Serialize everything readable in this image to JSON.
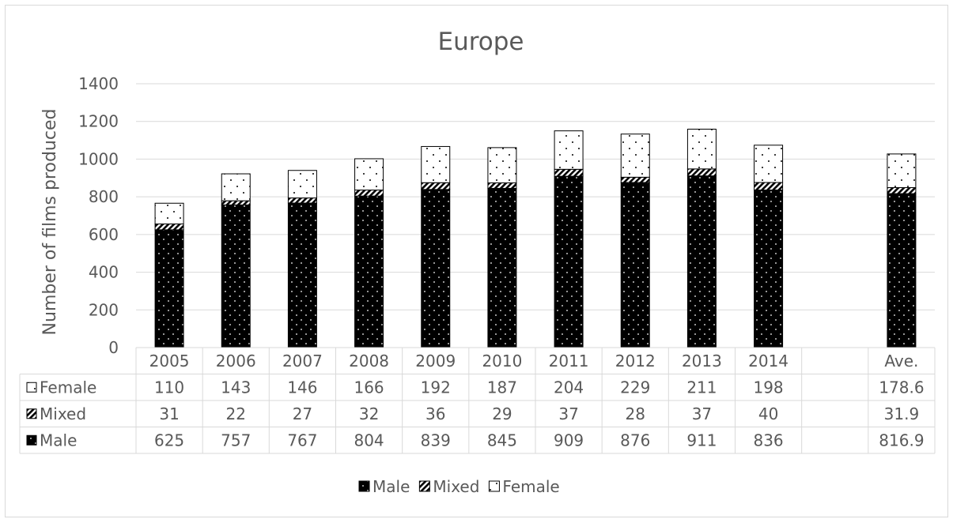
{
  "chart_data": {
    "type": "bar",
    "stacked": true,
    "title": "Europe",
    "ylabel": "Number of films produced",
    "xlabel": "",
    "ylim": [
      0,
      1400
    ],
    "yticks": [
      "0",
      "200",
      "400",
      "600",
      "800",
      "1000",
      "1200",
      "1400"
    ],
    "yticks_values": [
      0,
      200,
      400,
      600,
      800,
      1000,
      1200,
      1400
    ],
    "grid": true,
    "legend_position": "bottom",
    "categories": [
      "2005",
      "2006",
      "2007",
      "2008",
      "2009",
      "2010",
      "2011",
      "2012",
      "2013",
      "2014",
      "",
      "Ave."
    ],
    "series": [
      {
        "name": "Male",
        "pattern": "dots-on-black",
        "values": [
          625,
          757,
          767,
          804,
          839,
          845,
          909,
          876,
          911,
          836,
          null,
          816.9
        ],
        "labels": [
          "625",
          "757",
          "767",
          "804",
          "839",
          "845",
          "909",
          "876",
          "911",
          "836",
          "",
          "816.9"
        ]
      },
      {
        "name": "Mixed",
        "pattern": "diagonal-hatch",
        "values": [
          31,
          22,
          27,
          32,
          36,
          29,
          37,
          28,
          37,
          40,
          null,
          31.9
        ],
        "labels": [
          "31",
          "22",
          "27",
          "32",
          "36",
          "29",
          "37",
          "28",
          "37",
          "40",
          "",
          "31.9"
        ]
      },
      {
        "name": "Female",
        "pattern": "dots-on-white",
        "values": [
          110,
          143,
          146,
          166,
          192,
          187,
          204,
          229,
          211,
          198,
          null,
          178.6
        ],
        "labels": [
          "110",
          "143",
          "146",
          "166",
          "192",
          "187",
          "204",
          "229",
          "211",
          "198",
          "",
          "178.6"
        ]
      }
    ],
    "colors": {
      "text": "#595959",
      "grid": "#d9d9d9",
      "bar_dark": "#000000",
      "bar_light": "#ffffff"
    }
  }
}
